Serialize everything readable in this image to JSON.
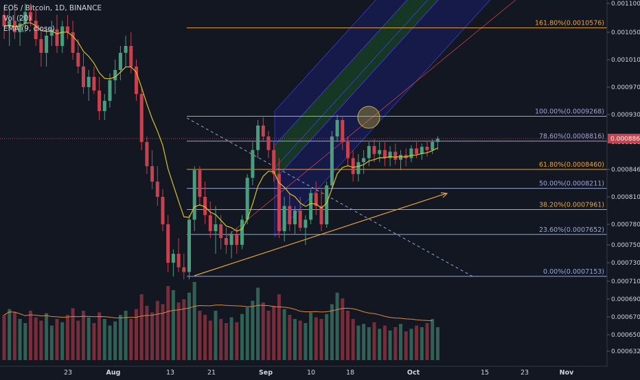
{
  "header": {
    "symbol": "EOS / Bitcoin, 1D, BINANCE",
    "indicator_vol": "Vol (20)",
    "indicator_ema": "EMA (9, close)"
  },
  "chart_data": {
    "type": "candlestick",
    "price_axis": {
      "ticks": [
        "0.0011000",
        "0.0010500",
        "0.0010100",
        "0.0009700",
        "0.0009300",
        "0.0008800",
        "0.0008460",
        "0.0008100",
        "0.0007800",
        "0.0007500",
        "0.0007300",
        "0.0007100",
        "0.0006900",
        "0.0006700",
        "0.0006500",
        "0.0006320"
      ],
      "current_price": "0.0008863"
    },
    "time_axis": {
      "labels": [
        "23",
        "Aug",
        "13",
        "21",
        "Sep",
        "10",
        "18",
        "Oct",
        "15",
        "23",
        "Nov"
      ]
    },
    "fibonacci": {
      "levels": [
        {
          "label": "161.80%(0.0010576)",
          "value": 0.0010576,
          "color": "#e8a33d"
        },
        {
          "label": "100.00%(0.0009268)",
          "value": 0.0009268,
          "color": "#9aa6d8"
        },
        {
          "label": "78.60%(0.0008816)",
          "value": 0.0008816,
          "color": "#9aa6d8"
        },
        {
          "label": "61.80%(0.0008460)",
          "value": 0.000846,
          "color": "#e8a33d"
        },
        {
          "label": "50.00%(0.0008211)",
          "value": 0.0008211,
          "color": "#9aa6d8"
        },
        {
          "label": "38.20%(0.0007961)",
          "value": 0.0007961,
          "color": "#e8a33d"
        },
        {
          "label": "23.60%(0.0007652)",
          "value": 0.0007652,
          "color": "#9aa6d8"
        },
        {
          "label": "0.00%(0.0007153)",
          "value": 0.0007153,
          "color": "#9aa6d8"
        }
      ]
    },
    "colors": {
      "up": "#4a9e7e",
      "down": "#c7424f",
      "ema": "#d9c22e",
      "vol_ma": "#e08a3c",
      "price_line": "#c7424f",
      "pitchfork_outer": "#1e1f8a",
      "pitchfork_inner": "#1f6b2a",
      "trendline": "#e8a33d"
    }
  }
}
